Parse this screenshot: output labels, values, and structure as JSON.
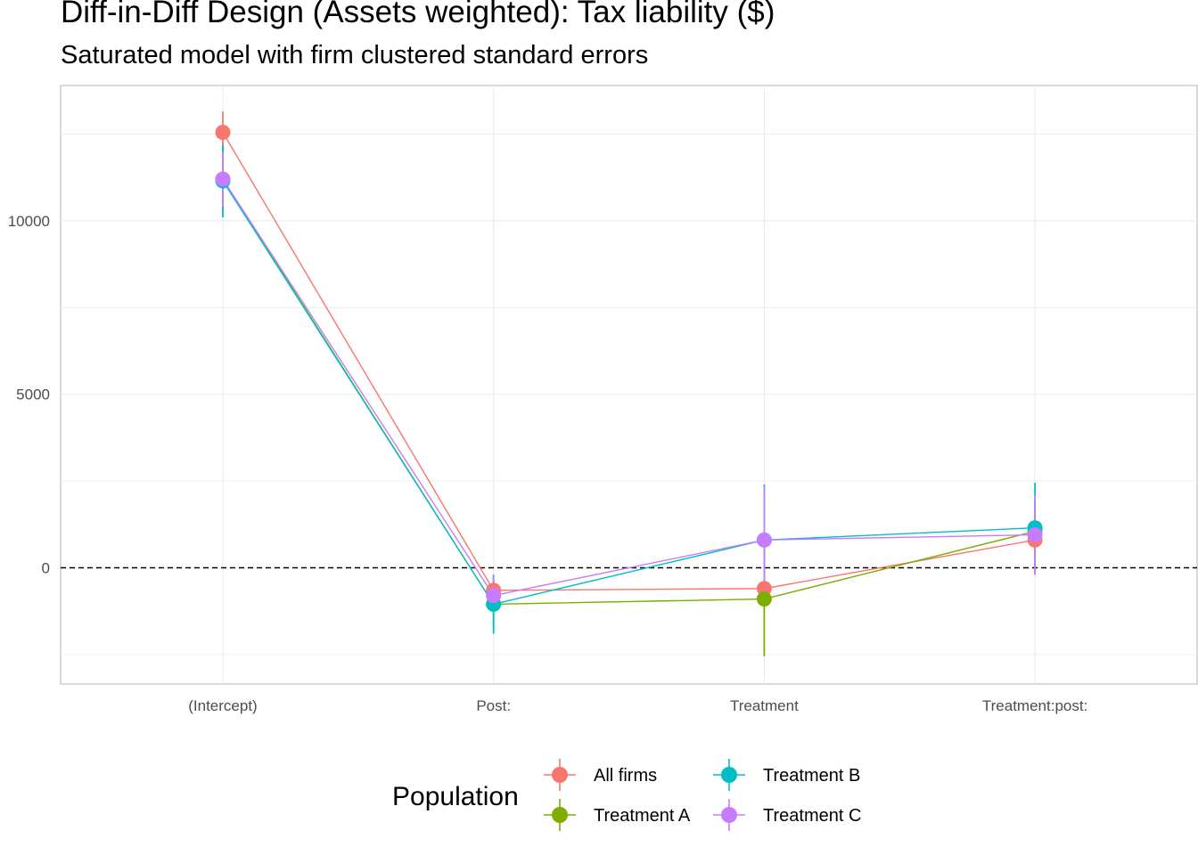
{
  "title": "Diff-in-Diff Design (Assets weighted): Tax liability  ($)",
  "subtitle": "Saturated model with firm clustered standard errors",
  "chart_data": {
    "type": "line",
    "title": "Diff-in-Diff Design (Assets weighted): Tax liability  ($)",
    "subtitle": "Saturated model with firm clustered standard errors",
    "xlabel": "",
    "ylabel": "",
    "categories": [
      "(Intercept)",
      "Post:",
      "Treatment",
      "Treatment:post:"
    ],
    "y_ticks": [
      0,
      5000,
      10000
    ],
    "y_tick_labels": [
      "0",
      "5000",
      "10000"
    ],
    "ylim": [
      -3350,
      13900
    ],
    "reference_line": 0,
    "grid": true,
    "legend_title": "Population",
    "legend_position": "bottom",
    "series": [
      {
        "name": "All firms",
        "color": "#F8766D",
        "values": [
          12550,
          -650,
          -600,
          800
        ],
        "lower": [
          11950,
          -1000,
          -900,
          -200
        ],
        "upper": [
          13150,
          -300,
          -300,
          1800
        ]
      },
      {
        "name": "Treatment A",
        "color": "#7CAE00",
        "values": [
          11200,
          -1050,
          -900,
          1050
        ],
        "lower": [
          10300,
          -1700,
          -2550,
          50
        ],
        "upper": [
          12100,
          -400,
          750,
          2050
        ]
      },
      {
        "name": "Treatment B",
        "color": "#00BFC4",
        "values": [
          11150,
          -1050,
          800,
          1150
        ],
        "lower": [
          10100,
          -1900,
          -800,
          -150
        ],
        "upper": [
          12200,
          -200,
          2400,
          2450
        ]
      },
      {
        "name": "Treatment C",
        "color": "#C77CFF",
        "values": [
          11200,
          -800,
          800,
          950
        ],
        "lower": [
          10400,
          -1250,
          -750,
          -200
        ],
        "upper": [
          12000,
          -250,
          2350,
          2100
        ]
      }
    ]
  }
}
